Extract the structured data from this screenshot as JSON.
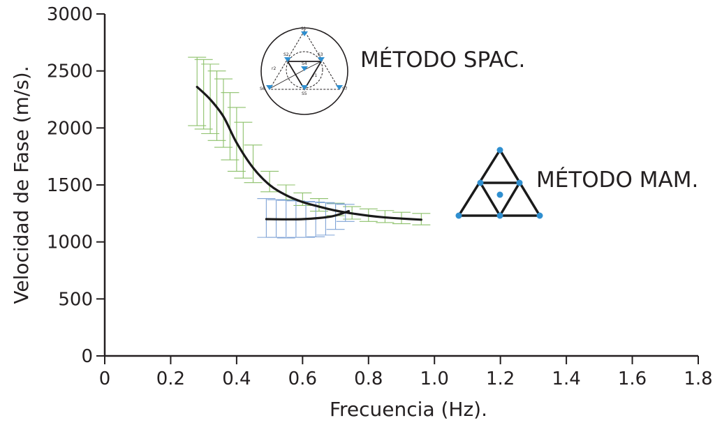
{
  "chart_data": {
    "type": "line",
    "xlabel": "Frecuencia (Hz).",
    "ylabel": "Velocidad de Fase (m/s).",
    "xlim": [
      0,
      1.8
    ],
    "ylim": [
      0,
      3000
    ],
    "x_ticks": [
      "0",
      "0.2",
      "0.4",
      "0.6",
      "0.8",
      "1.0",
      "1.2",
      "1.4",
      "1.6",
      "1.8"
    ],
    "y_ticks": [
      "0",
      "500",
      "1000",
      "1500",
      "2000",
      "2500",
      "3000"
    ],
    "grid": false,
    "series": [
      {
        "name": "MÉTODO SPAC.",
        "color": "#1a1a1a",
        "x": [
          0.28,
          0.32,
          0.36,
          0.4,
          0.45,
          0.5,
          0.55,
          0.6,
          0.65,
          0.7,
          0.75,
          0.8,
          0.85,
          0.9,
          0.96
        ],
        "y": [
          2360,
          2250,
          2100,
          1870,
          1650,
          1500,
          1410,
          1350,
          1310,
          1275,
          1250,
          1230,
          1215,
          1205,
          1195
        ],
        "errorbar_color": "#8cc06a",
        "errorbars": [
          {
            "x": 0.28,
            "low": 2020,
            "high": 2620
          },
          {
            "x": 0.3,
            "low": 1990,
            "high": 2600
          },
          {
            "x": 0.32,
            "low": 1950,
            "high": 2560
          },
          {
            "x": 0.34,
            "low": 1890,
            "high": 2500
          },
          {
            "x": 0.36,
            "low": 1830,
            "high": 2430
          },
          {
            "x": 0.38,
            "low": 1720,
            "high": 2310
          },
          {
            "x": 0.4,
            "low": 1620,
            "high": 2180
          },
          {
            "x": 0.42,
            "low": 1560,
            "high": 2050
          },
          {
            "x": 0.45,
            "low": 1520,
            "high": 1850
          },
          {
            "x": 0.5,
            "low": 1440,
            "high": 1620
          },
          {
            "x": 0.55,
            "low": 1370,
            "high": 1500
          },
          {
            "x": 0.6,
            "low": 1320,
            "high": 1430
          },
          {
            "x": 0.65,
            "low": 1270,
            "high": 1380
          },
          {
            "x": 0.7,
            "low": 1230,
            "high": 1340
          },
          {
            "x": 0.75,
            "low": 1200,
            "high": 1310
          },
          {
            "x": 0.8,
            "low": 1180,
            "high": 1290
          },
          {
            "x": 0.85,
            "low": 1170,
            "high": 1275
          },
          {
            "x": 0.9,
            "low": 1160,
            "high": 1260
          },
          {
            "x": 0.96,
            "low": 1150,
            "high": 1250
          }
        ]
      },
      {
        "name": "MÉTODO MAM.",
        "color": "#1a1a1a",
        "x": [
          0.49,
          0.55,
          0.6,
          0.65,
          0.69,
          0.72,
          0.74
        ],
        "y": [
          1200,
          1198,
          1200,
          1210,
          1225,
          1250,
          1270
        ],
        "errorbar_color": "#7fa3d6",
        "errorbars": [
          {
            "x": 0.49,
            "low": 1040,
            "high": 1380
          },
          {
            "x": 0.52,
            "low": 1040,
            "high": 1370
          },
          {
            "x": 0.55,
            "low": 1035,
            "high": 1365
          },
          {
            "x": 0.58,
            "low": 1040,
            "high": 1360
          },
          {
            "x": 0.61,
            "low": 1040,
            "high": 1355
          },
          {
            "x": 0.64,
            "low": 1045,
            "high": 1350
          },
          {
            "x": 0.67,
            "low": 1060,
            "high": 1345
          },
          {
            "x": 0.7,
            "low": 1110,
            "high": 1335
          },
          {
            "x": 0.73,
            "low": 1180,
            "high": 1330
          }
        ]
      }
    ],
    "annotations": [
      "MÉTODO SPAC.",
      "MÉTODO MAM."
    ]
  },
  "spac_diagram": {
    "station_labels": [
      "S1",
      "S2",
      "S3",
      "S4",
      "S5",
      "S6",
      "S7"
    ],
    "radius_labels": [
      "r1",
      "r2"
    ]
  }
}
